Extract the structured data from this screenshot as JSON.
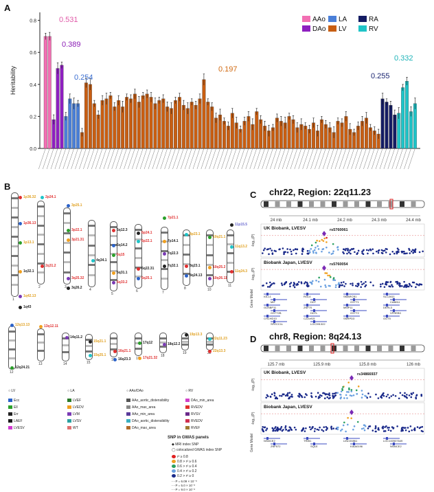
{
  "panelA": {
    "letter": "A",
    "ylabel": "Heritability",
    "yticks": [
      "0.0",
      "0.2",
      "0.4",
      "0.6",
      "0.8"
    ],
    "annotations": [
      {
        "text": "0.531",
        "color": "#e05aa8"
      },
      {
        "text": "0.389",
        "color": "#8a1bb5"
      },
      {
        "text": "0.254",
        "color": "#3c6fd1"
      },
      {
        "text": "0.197",
        "color": "#d06a12"
      },
      {
        "text": "0.255",
        "color": "#1a2470"
      },
      {
        "text": "0.332",
        "color": "#1db3b8"
      }
    ],
    "legend": [
      {
        "label": "AAo",
        "color": "#f26fb3"
      },
      {
        "label": "LA",
        "color": "#4a7fd8"
      },
      {
        "label": "RA",
        "color": "#141c63"
      },
      {
        "label": "DAo",
        "color": "#8e1fc0"
      },
      {
        "label": "LV",
        "color": "#c85e12"
      },
      {
        "label": "RV",
        "color": "#1fc4c8"
      }
    ]
  },
  "chart_data": {
    "type": "bar",
    "ylabel": "Heritability",
    "ylim": [
      0,
      0.85
    ],
    "groups": [
      {
        "name": "AAo",
        "color": "#f26fb3",
        "values": [
          0.7,
          0.7
        ]
      },
      {
        "name": "DAo",
        "color": "#8e1fc0",
        "values": [
          0.18,
          0.5,
          0.52
        ]
      },
      {
        "name": "LA",
        "color": "#4a7fd8",
        "values": [
          0.2,
          0.31,
          0.28,
          0.28
        ]
      },
      {
        "name": "LV",
        "color": "#c85e12",
        "values": [
          0.1,
          0.41,
          0.4,
          0.28,
          0.21,
          0.3,
          0.31,
          0.33,
          0.26,
          0.3,
          0.26,
          0.32,
          0.31,
          0.34,
          0.29,
          0.33,
          0.34,
          0.32,
          0.28,
          0.3,
          0.31,
          0.26,
          0.25,
          0.3,
          0.32,
          0.27,
          0.25,
          0.29,
          0.27,
          0.31,
          0.43,
          0.29,
          0.26,
          0.19,
          0.21,
          0.17,
          0.14,
          0.22,
          0.16,
          0.12,
          0.17,
          0.2,
          0.15,
          0.23,
          0.18,
          0.14,
          0.11,
          0.13,
          0.19,
          0.17,
          0.16,
          0.2,
          0.18,
          0.13,
          0.15,
          0.14,
          0.12,
          0.16,
          0.11,
          0.18,
          0.15,
          0.13,
          0.1,
          0.17,
          0.16,
          0.2,
          0.12,
          0.1,
          0.14,
          0.17,
          0.19,
          0.13,
          0.11,
          0.09
        ]
      },
      {
        "name": "RA",
        "color": "#141c63",
        "values": [
          0.31,
          0.29,
          0.27,
          0.21
        ]
      },
      {
        "name": "RV",
        "color": "#1fc4c8",
        "values": [
          0.22,
          0.38,
          0.42,
          0.23,
          0.28
        ]
      }
    ]
  },
  "panelB": {
    "letter": "B",
    "legend_headers": [
      "LV",
      "LA",
      "AAo/DAo",
      "RV"
    ],
    "legend_items": [
      {
        "label": "Ecc",
        "color": "#2b62c9"
      },
      {
        "label": "LVEF",
        "color": "#2a7a2a"
      },
      {
        "label": "AAo_aortic_distensibility",
        "color": "#555"
      },
      {
        "label": "DAo_min_area",
        "color": "#d13fc7"
      },
      {
        "label": "Ell",
        "color": "#2aa02a"
      },
      {
        "label": "LVEDV",
        "color": "#f0a020"
      },
      {
        "label": "AAo_max_area",
        "color": "#888"
      },
      {
        "label": "RVEDV",
        "color": "#e0302a"
      },
      {
        "label": "Err",
        "color": "#222"
      },
      {
        "label": "LVM",
        "color": "#7a3ab5"
      },
      {
        "label": "AAo_min_area",
        "color": "#5a3a9a"
      },
      {
        "label": "RVSV",
        "color": "#6a2a8a"
      },
      {
        "label": "LAEF",
        "color": "#1a1a1a"
      },
      {
        "label": "LVSV",
        "color": "#2aa0a0"
      },
      {
        "label": "DAo_aortic_distensibility",
        "color": "#3ab0c0"
      },
      {
        "label": "RVEDV",
        "color": "#d03050"
      },
      {
        "label": "LVESV",
        "color": "#d03ad0"
      },
      {
        "label": "WT",
        "color": "#e07070"
      },
      {
        "label": "DAo_max_area",
        "color": "#b06a2a"
      },
      {
        "label": "RVEF",
        "color": "#a07a30"
      }
    ],
    "snp_title": "SNP in GWAS panels",
    "snp_items": [
      "MRI index SNP",
      "colocalized GWAS index SNP"
    ],
    "r2_items": [
      "r² ≥ 0.8",
      "0.8 > r² ≥ 0.6",
      "0.6 > r² ≥ 0.4",
      "0.4 > r² ≥ 0.2",
      "0.2 > r² ≥ 0"
    ],
    "r2_colors": [
      "#e02020",
      "#f0a020",
      "#2aa060",
      "#6aa0e0",
      "#1a2a8a"
    ],
    "p_items": [
      "P = 6.09 × 10⁻⁸",
      "P = 5.0 × 10⁻⁸",
      "P = 9.0 × 10⁻⁸"
    ],
    "loci": [
      {
        "text": "1p36.32",
        "color": "#e0a020"
      },
      {
        "text": "1p36.13",
        "color": "#e03030"
      },
      {
        "text": "1p13.1",
        "color": "#e0a020"
      },
      {
        "text": "1q32.1",
        "color": "#222"
      },
      {
        "text": "1q42.13",
        "color": "#e0a020"
      },
      {
        "text": "1q43",
        "color": "#222"
      },
      {
        "text": "2p24.1",
        "color": "#e03030"
      },
      {
        "text": "2q31.2",
        "color": "#e03030"
      },
      {
        "text": "3p25.1",
        "color": "#e0a020"
      },
      {
        "text": "3p22.1",
        "color": "#e03030"
      },
      {
        "text": "3p21.31",
        "color": "#e03030"
      },
      {
        "text": "3q25.32",
        "color": "#e03030"
      },
      {
        "text": "3q26.2",
        "color": "#222"
      },
      {
        "text": "4q34.1",
        "color": "#222"
      },
      {
        "text": "5q12.3",
        "color": "#222"
      },
      {
        "text": "5q14.2",
        "color": "#222"
      },
      {
        "text": "5q15",
        "color": "#e03030"
      },
      {
        "text": "5q31.1",
        "color": "#222"
      },
      {
        "text": "5q33.2",
        "color": "#e03030"
      },
      {
        "text": "6p24.1",
        "color": "#e03030"
      },
      {
        "text": "6p22.1",
        "color": "#e03030"
      },
      {
        "text": "6q22.31",
        "color": "#222"
      },
      {
        "text": "6q25.1",
        "color": "#e03030"
      },
      {
        "text": "7p21.1",
        "color": "#e03030"
      },
      {
        "text": "7p14.1",
        "color": "#222"
      },
      {
        "text": "7q22.3",
        "color": "#222"
      },
      {
        "text": "7q32.1",
        "color": "#222"
      },
      {
        "text": "8p23.1",
        "color": "#e0a020"
      },
      {
        "text": "8q23.1",
        "color": "#222"
      },
      {
        "text": "8q24.13",
        "color": "#222"
      },
      {
        "text": "10q21.1",
        "color": "#e0a020"
      },
      {
        "text": "10q25.2",
        "color": "#e03030"
      },
      {
        "text": "10q26.11",
        "color": "#e03030"
      },
      {
        "text": "11p15.5",
        "color": "#6a6ad0"
      },
      {
        "text": "11q13.2",
        "color": "#e0a020"
      },
      {
        "text": "11q24.3",
        "color": "#e0a020"
      },
      {
        "text": "12q13.13",
        "color": "#e0a020"
      },
      {
        "text": "12q24.21",
        "color": "#222"
      },
      {
        "text": "13q12.11",
        "color": "#e03030"
      },
      {
        "text": "14q11.2",
        "color": "#222"
      },
      {
        "text": "15q21.1",
        "color": "#e0a020"
      },
      {
        "text": "15q25.1",
        "color": "#e0a020"
      },
      {
        "text": "16q21.1",
        "color": "#e03030"
      },
      {
        "text": "16q23.3",
        "color": "#222"
      },
      {
        "text": "17q12",
        "color": "#222"
      },
      {
        "text": "17q21.32",
        "color": "#e03030"
      },
      {
        "text": "18q12.2",
        "color": "#222"
      },
      {
        "text": "19p13.3",
        "color": "#e0a020"
      },
      {
        "text": "22q11.23",
        "color": "#e0a020"
      },
      {
        "text": "22q13.3",
        "color": "#e0a020"
      }
    ],
    "chr_numbers": [
      "1",
      "2",
      "3",
      "4",
      "5",
      "6",
      "7",
      "8",
      "10",
      "11",
      "12",
      "13",
      "14",
      "15",
      "16",
      "17",
      "18",
      "19",
      "22"
    ]
  },
  "panelC": {
    "letter": "C",
    "title": "chr22, Region: 22q11.23",
    "axis_ticks": [
      "24 mb",
      "24.1 mb",
      "24.2 mb",
      "24.3 mb",
      "24.4 mb"
    ],
    "track1": "UK Biobank, LVESV",
    "track1_snp": "rs5760061",
    "track2": "Biobank Japan, LVESV",
    "track2_snp": "rs5760054",
    "genes": [
      "IGLL1",
      "RGL4",
      "SMARCB1",
      "SLC2A11",
      "MIF",
      "DDT",
      "GSTT1",
      "CABIN1",
      "GUSBP11",
      "ZNF70",
      "MMP11",
      "DERL3",
      "GSTT2B",
      "DDTL",
      "GSTT2",
      "VPREB3",
      "CHCHD10",
      "C22orf15",
      "SNRPD3",
      "GGT5",
      "SPECC1L",
      "LOC391322"
    ],
    "ylabel": "-log₁₀(P)"
  },
  "panelD": {
    "letter": "D",
    "title": "chr8, Region: 8q24.13",
    "axis_ticks": [
      "125.7 mb",
      "125.9 mb",
      "125.8 mb",
      "126 mb"
    ],
    "track1": "UK Biobank, LVESV",
    "track1_snp": "rs34866937",
    "track2": "Biobank Japan, LVESV",
    "genes": [
      "NSMCE2",
      "TRIB1",
      "LINC00861",
      "LOC100507649",
      "ZNF572",
      "SQLE",
      "KIAA0196",
      "NSMCE2"
    ],
    "ylabel": "-log₁₀(P)"
  }
}
